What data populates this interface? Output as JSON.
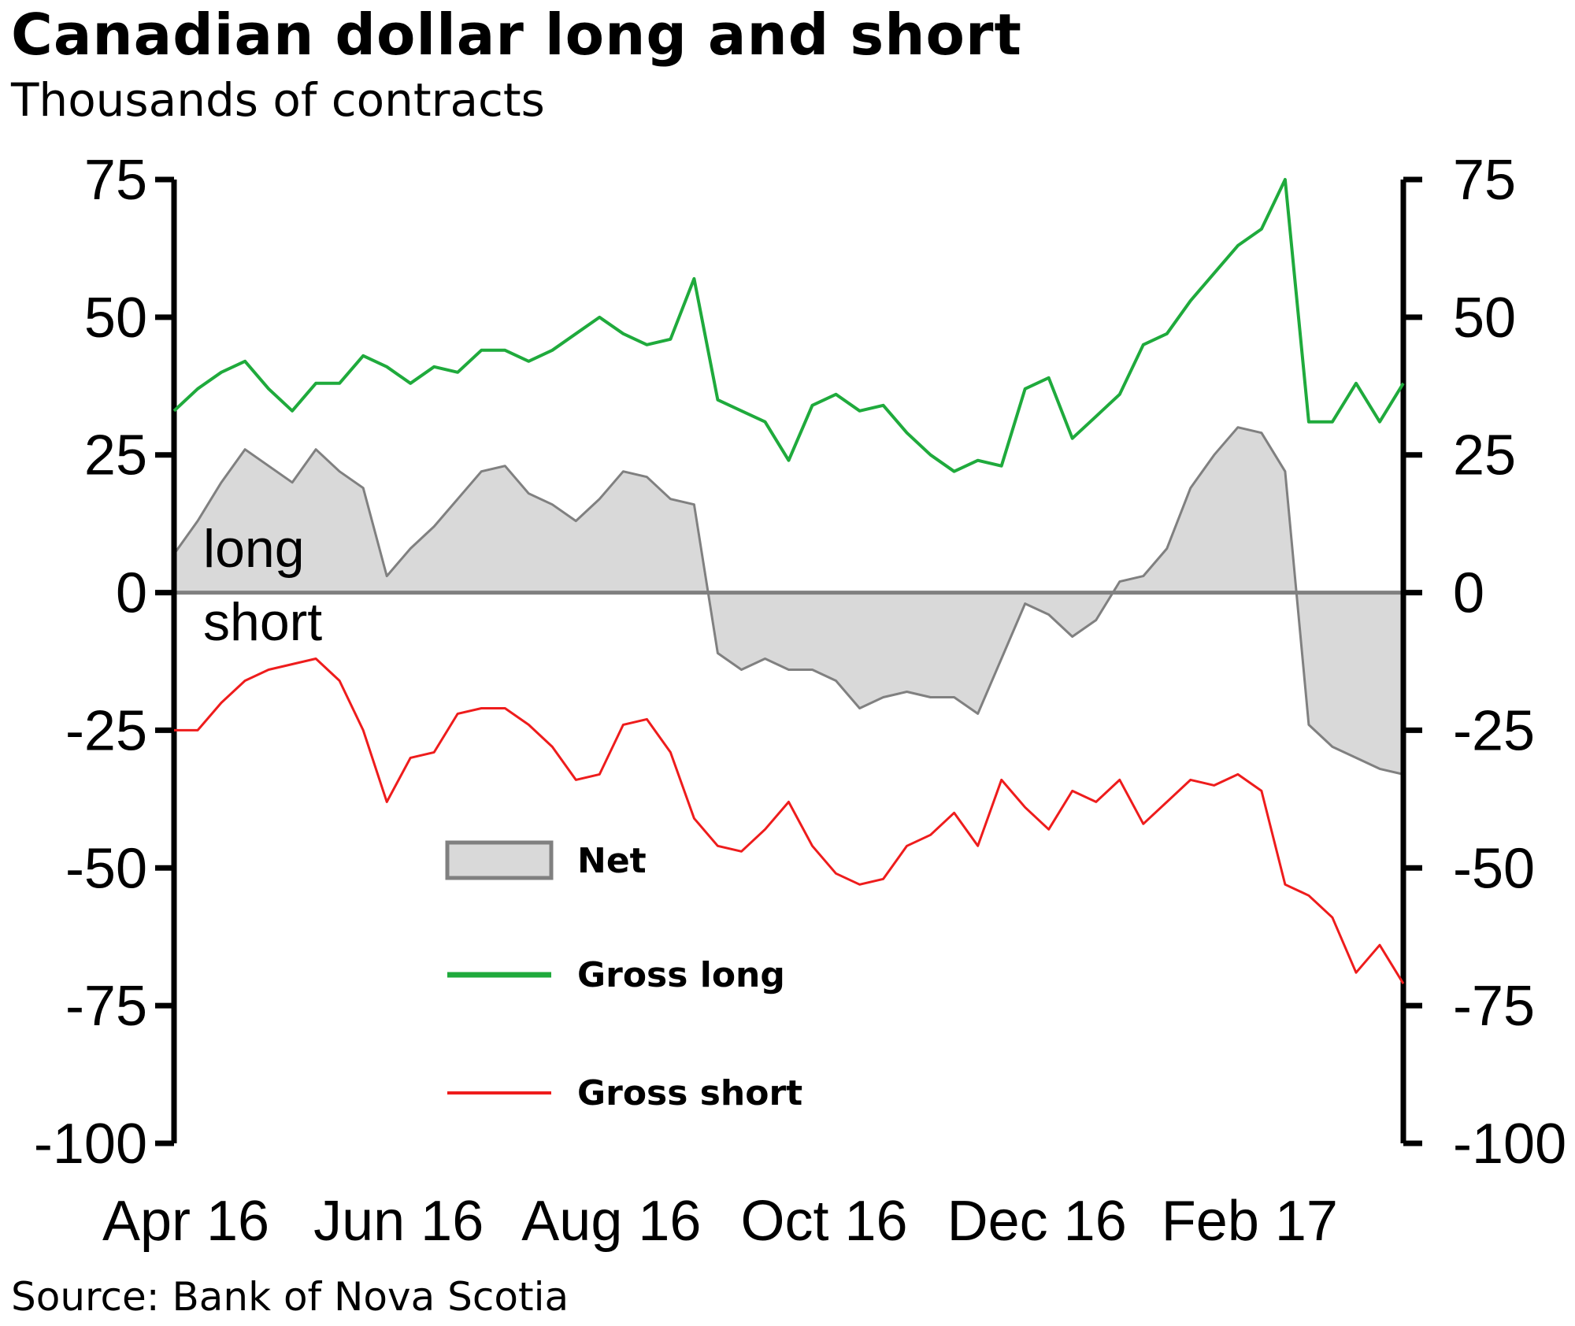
{
  "title": "Canadian dollar long and short",
  "subtitle": "Thousands of contracts",
  "source": "Source: Bank of Nova Scotia",
  "colors": {
    "gross_long": "#1faa3c",
    "gross_short": "#ee1c1c",
    "net_fill": "#d9d9d9",
    "net_line": "#808080",
    "axis": "#000000",
    "zero_line": "#808080"
  },
  "chart_data": {
    "type": "area",
    "title": "Canadian dollar long and short",
    "subtitle": "Thousands of contracts",
    "ylabel": "Thousands of contracts",
    "ylim": [
      -100,
      75
    ],
    "yticks": [
      75,
      50,
      25,
      0,
      -25,
      -50,
      -75,
      -100
    ],
    "ytick_labels": [
      "75",
      "50",
      "25",
      "0",
      "-25",
      "-50",
      "-75",
      "-100"
    ],
    "right_axis_mirrors_left": true,
    "xtick_labels": [
      "Apr 16",
      "Jun 16",
      "Aug 16",
      "Oct 16",
      "Dec 16",
      "Feb 17"
    ],
    "xtick_positions": [
      0.5,
      9.5,
      18.5,
      27.5,
      36.5,
      45.5
    ],
    "annotations": [
      {
        "text": "long",
        "side": "above zero line"
      },
      {
        "text": "short",
        "side": "below zero line"
      }
    ],
    "legend": {
      "placement": "center-bottom",
      "entries": [
        "Net",
        "Gross long",
        "Gross short"
      ]
    },
    "series": [
      {
        "name": "Net",
        "style": "area",
        "values": [
          7,
          13,
          20,
          26,
          23,
          20,
          26,
          22,
          19,
          3,
          8,
          12,
          17,
          22,
          23,
          18,
          16,
          13,
          17,
          22,
          21,
          17,
          16,
          -11,
          -14,
          -12,
          -14,
          -14,
          -16,
          -21,
          -19,
          -18,
          -19,
          -19,
          -22,
          -12,
          -2,
          -4,
          -8,
          -5,
          2,
          3,
          8,
          19,
          25,
          30,
          29,
          22,
          -24,
          -28,
          -30,
          -32,
          -33
        ]
      },
      {
        "name": "Gross long",
        "style": "line",
        "values": [
          33,
          37,
          40,
          42,
          37,
          33,
          38,
          38,
          43,
          41,
          38,
          41,
          40,
          44,
          44,
          42,
          44,
          47,
          50,
          47,
          45,
          46,
          57,
          35,
          33,
          31,
          24,
          34,
          36,
          33,
          34,
          29,
          25,
          22,
          24,
          23,
          37,
          39,
          28,
          32,
          36,
          45,
          47,
          53,
          58,
          63,
          66,
          75,
          31,
          31,
          38,
          31,
          38
        ]
      },
      {
        "name": "Gross short",
        "style": "line",
        "values": [
          -25,
          -25,
          -20,
          -16,
          -14,
          -13,
          -12,
          -16,
          -25,
          -38,
          -30,
          -29,
          -22,
          -21,
          -21,
          -24,
          -28,
          -34,
          -33,
          -24,
          -23,
          -29,
          -41,
          -46,
          -47,
          -43,
          -38,
          -46,
          -51,
          -53,
          -52,
          -46,
          -44,
          -40,
          -46,
          -34,
          -39,
          -43,
          -36,
          -38,
          -34,
          -42,
          -38,
          -34,
          -35,
          -33,
          -36,
          -53,
          -55,
          -59,
          -69,
          -64,
          -71
        ]
      }
    ]
  }
}
